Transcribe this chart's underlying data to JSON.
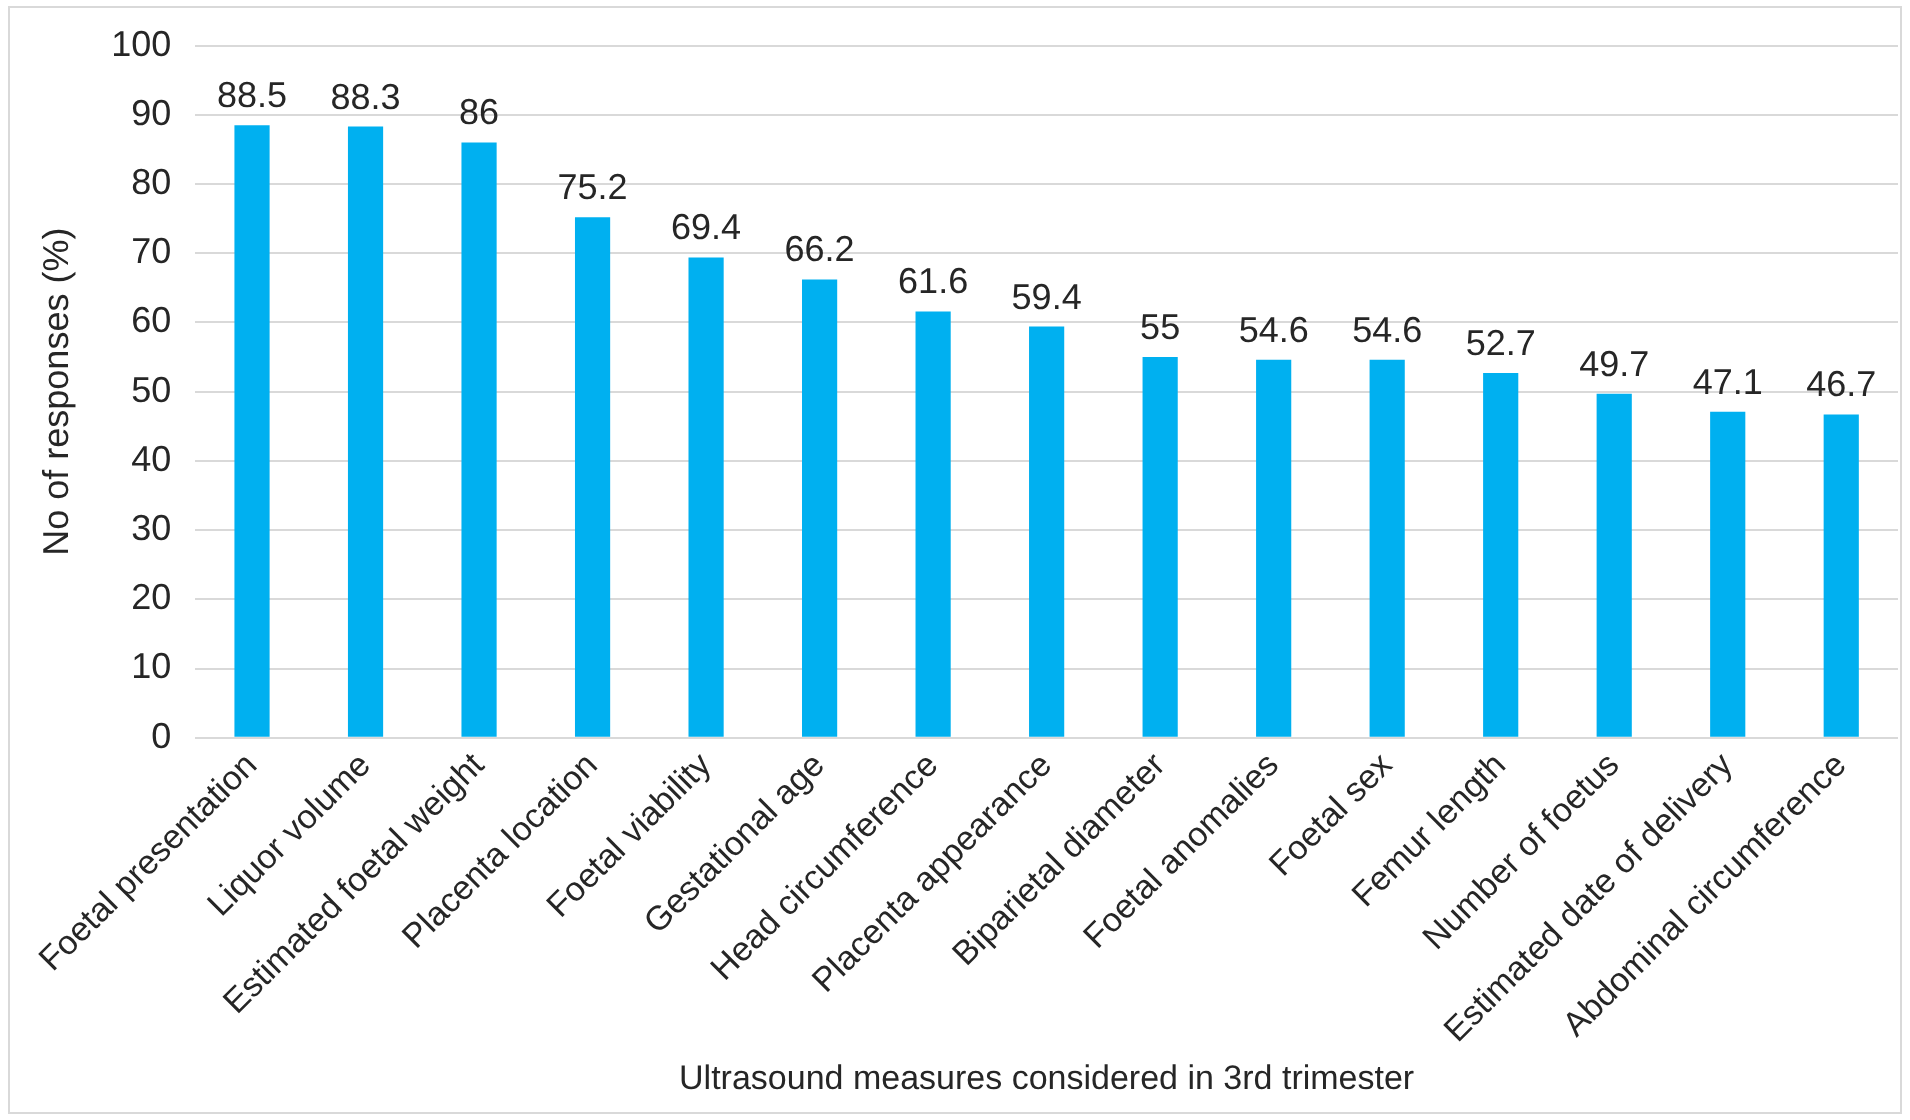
{
  "chart_data": {
    "type": "bar",
    "xlabel": "Ultrasound measures considered in 3rd trimester",
    "ylabel": "No of responses (%)",
    "categories": [
      "Foetal presentation",
      "Liquor volume",
      "Estimated foetal weight",
      "Placenta location",
      "Foetal viability",
      "Gestational age",
      "Head circumference",
      "Placenta appearance",
      "Biparietal diameter",
      "Foetal anomalies",
      "Foetal sex",
      "Femur length",
      "Number of foetus",
      "Estimated date of delivery",
      "Abdominal circumference"
    ],
    "values": [
      88.5,
      88.3,
      86,
      75.2,
      69.4,
      66.2,
      61.6,
      59.4,
      55,
      54.6,
      54.6,
      52.7,
      49.7,
      47.1,
      46.7
    ],
    "color": "#00b0f0",
    "ylim": [
      0,
      100
    ],
    "yticks": [
      0,
      10,
      20,
      30,
      40,
      50,
      60,
      70,
      80,
      90,
      100
    ],
    "grid": "y",
    "data_labels": true
  }
}
